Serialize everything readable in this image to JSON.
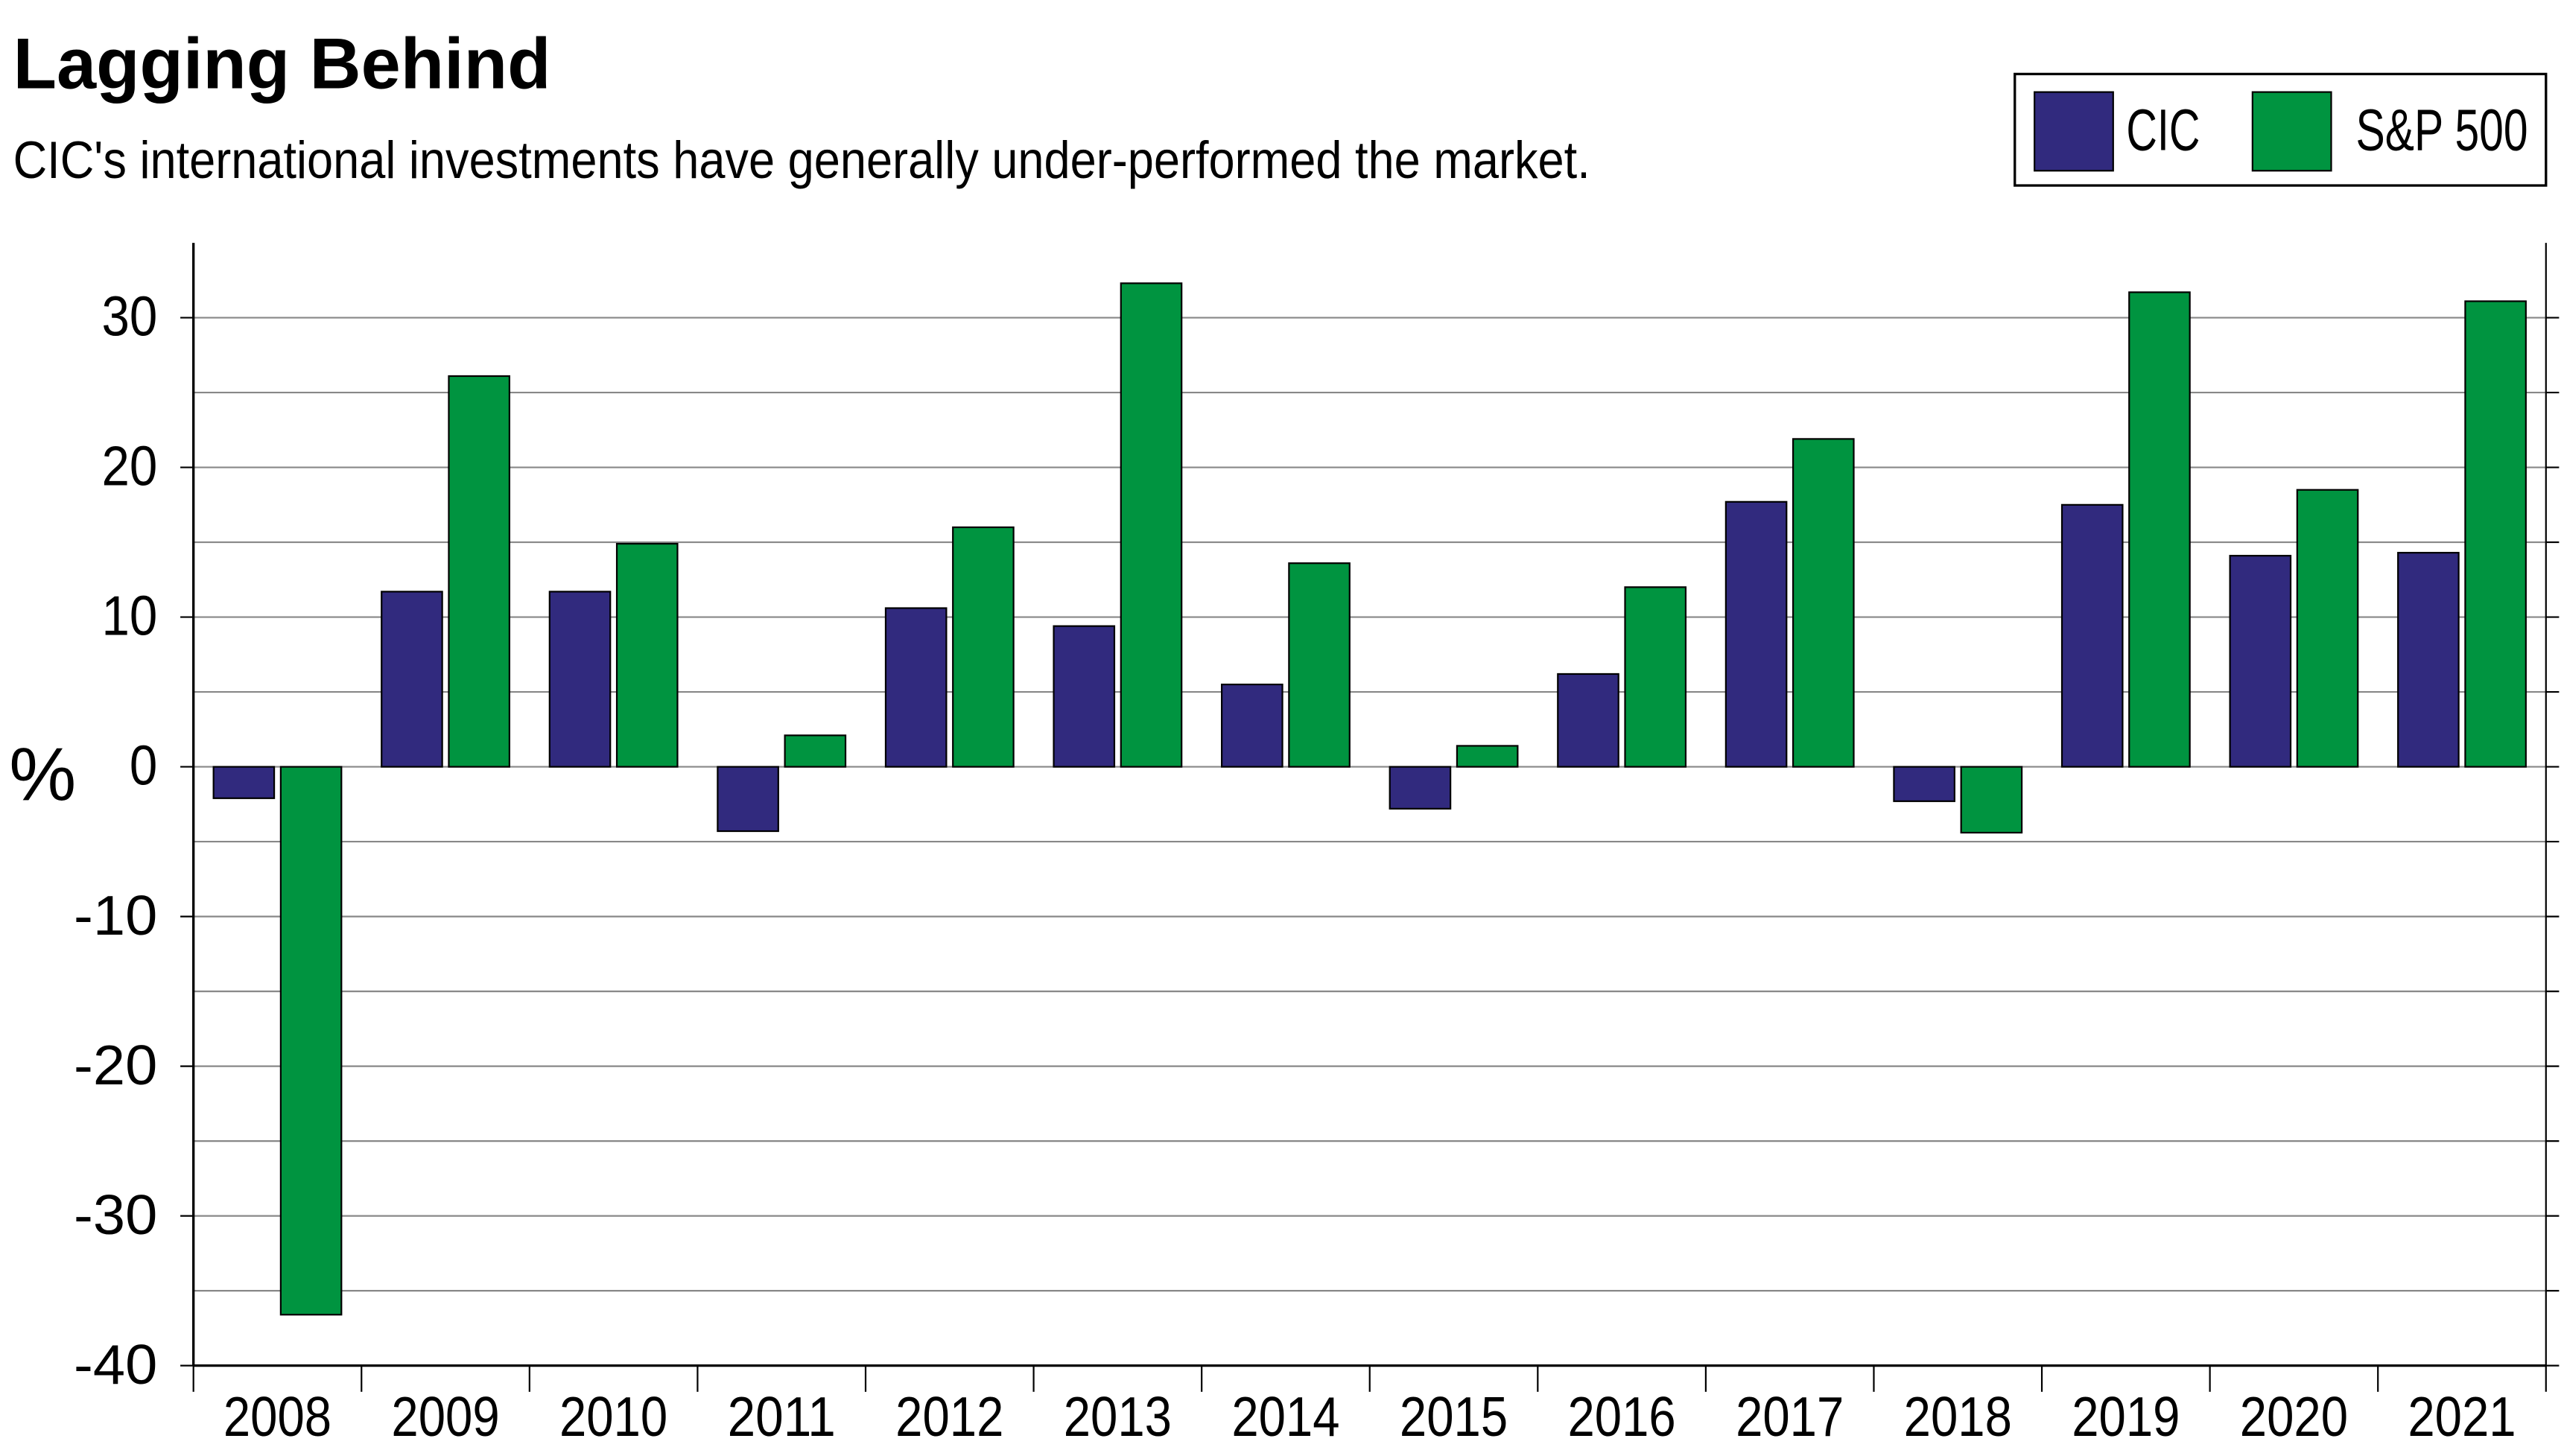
{
  "chart_data": {
    "type": "bar",
    "title": "Lagging Behind",
    "subtitle": "CIC's international investments have generally under-performed the market.",
    "y_label": "%",
    "categories": [
      "2008",
      "2009",
      "2010",
      "2011",
      "2012",
      "2013",
      "2014",
      "2015",
      "2016",
      "2017",
      "2018",
      "2019",
      "2020",
      "2021"
    ],
    "series": [
      {
        "name": "CIC",
        "color": "#312a7e",
        "values": [
          -2.1,
          11.7,
          11.7,
          -4.3,
          10.6,
          9.4,
          5.5,
          -2.8,
          6.2,
          17.7,
          -2.3,
          17.5,
          14.1,
          14.3
        ]
      },
      {
        "name": "S&P 500",
        "color": "#009440",
        "values": [
          -36.6,
          26.1,
          14.9,
          2.1,
          16.0,
          32.3,
          13.6,
          1.4,
          12.0,
          21.9,
          -4.4,
          31.7,
          18.5,
          31.1
        ]
      }
    ],
    "ylim": [
      -40,
      35
    ],
    "yticks": [
      -40,
      -30,
      -20,
      -10,
      0,
      10,
      20,
      30
    ],
    "minor_yticks": [
      -35,
      -25,
      -15,
      -5,
      5,
      15,
      25
    ],
    "grid": true,
    "legend": "top-right"
  }
}
